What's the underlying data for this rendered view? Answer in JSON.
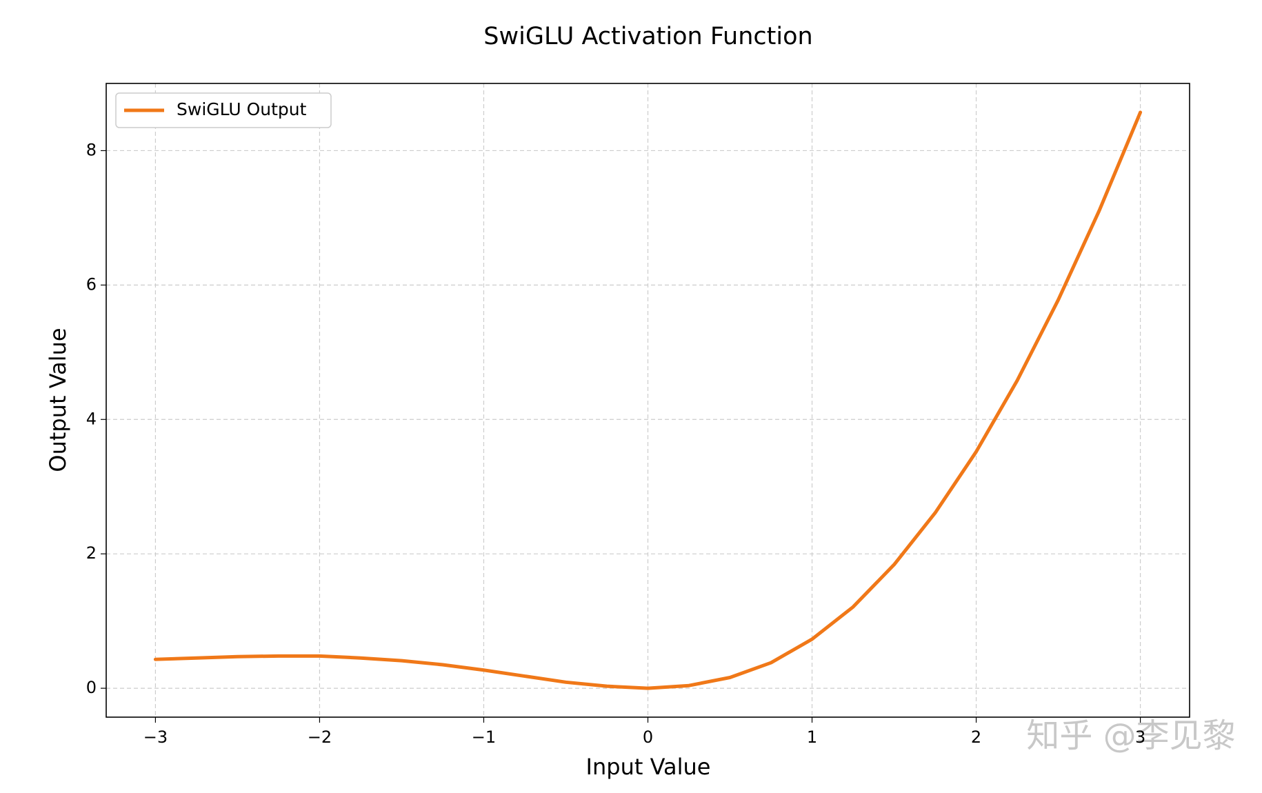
{
  "chart_data": {
    "type": "line",
    "title": "SwiGLU Activation Function",
    "x_label": "Input Value",
    "y_label": "Output Value",
    "x": [
      -3,
      -2.75,
      -2.5,
      -2.25,
      -2,
      -1.75,
      -1.5,
      -1.25,
      -1,
      -0.75,
      -0.5,
      -0.25,
      0,
      0.25,
      0.5,
      0.75,
      1,
      1.25,
      1.5,
      1.75,
      2,
      2.25,
      2.5,
      2.75,
      3
    ],
    "series": [
      {
        "name": "SwiGLU Output",
        "color": "#f07818",
        "values": [
          0.43,
          0.45,
          0.47,
          0.48,
          0.48,
          0.45,
          0.41,
          0.35,
          0.27,
          0.18,
          0.09,
          0.03,
          0,
          0.04,
          0.16,
          0.38,
          0.73,
          1.21,
          1.84,
          2.61,
          3.52,
          4.58,
          5.78,
          7.11,
          8.57
        ]
      }
    ],
    "xlim": [
      -3.3,
      3.3
    ],
    "ylim": [
      -0.43,
      9.0
    ],
    "xticks": [
      {
        "value": -3,
        "label": "−3"
      },
      {
        "value": -2,
        "label": "−2"
      },
      {
        "value": -1,
        "label": "−1"
      },
      0,
      1,
      2,
      3
    ],
    "yticks": [
      0,
      2,
      4,
      6,
      8
    ],
    "grid": true,
    "legend": "upper-left",
    "watermark": "知乎 @李见黎"
  }
}
